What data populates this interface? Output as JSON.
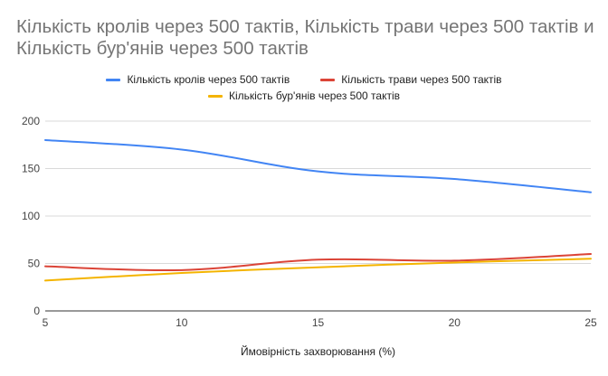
{
  "chart_data": {
    "type": "line",
    "title": "Кількість кролів через 500 тактів, Кількість трави через 500 тактів и Кількість бур'янів через 500 тактів",
    "xlabel": "Ймовірність захворювання (%)",
    "ylabel": "",
    "x": [
      5,
      10,
      15,
      20,
      25
    ],
    "xlim": [
      5,
      25
    ],
    "ylim": [
      0,
      200
    ],
    "x_ticks": [
      5,
      10,
      15,
      20,
      25
    ],
    "y_ticks": [
      0,
      50,
      100,
      150,
      200
    ],
    "grid": true,
    "legend_position": "top",
    "series": [
      {
        "name": "Кількість кролів через 500 тактів",
        "color": "#4285F4",
        "values": [
          180,
          170,
          147,
          139,
          125
        ]
      },
      {
        "name": "Кількість трави через 500 тактів",
        "color": "#DB4437",
        "values": [
          47,
          43,
          54,
          53,
          60
        ]
      },
      {
        "name": "Кількість бур'янів через 500 тактів",
        "color": "#F4B400",
        "values": [
          32,
          40,
          46,
          51,
          55
        ]
      }
    ]
  }
}
